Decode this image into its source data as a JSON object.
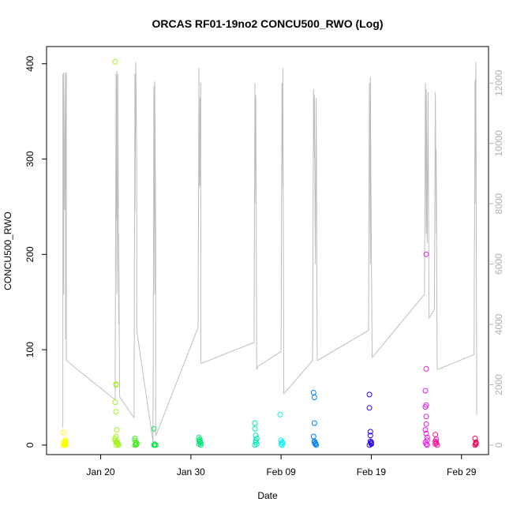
{
  "chart_data": {
    "type": "scatter",
    "title": "ORCAS RF01-19no2 CONCU500_RWO (Log)",
    "xlabel": "Date",
    "ylabel": "CONCU500_RWO",
    "xlim": [
      "2016-01-14",
      "2016-03-03"
    ],
    "ylim": [
      -10,
      418
    ],
    "y2lim": [
      -316,
      13210
    ],
    "x_ticks": [
      {
        "label": "Jan 20",
        "date": "2016-01-20"
      },
      {
        "label": "Jan 30",
        "date": "2016-01-30"
      },
      {
        "label": "Feb 09",
        "date": "2016-02-09"
      },
      {
        "label": "Feb 19",
        "date": "2016-02-19"
      },
      {
        "label": "Feb 29",
        "date": "2016-02-29"
      }
    ],
    "y_ticks": [
      0,
      100,
      200,
      300,
      400
    ],
    "y2_ticks": [
      0,
      2000,
      4000,
      6000,
      8000,
      10000,
      12000
    ],
    "grid": false,
    "legend": "none",
    "right_axis_color": "#b0b0b0",
    "line_series": {
      "color": "#bebebe",
      "segments": [
        {
          "x": [
            "2016-01-15.8",
            "2016-01-15.8",
            "2016-01-15.9",
            "2016-01-15.9",
            "2016-01-16.0",
            "2016-01-16.0",
            "2016-01-16.1",
            "2016-01-16.1",
            "2016-01-16.1",
            "2016-01-16.2",
            "2016-01-16.2"
          ],
          "y": [
            600,
            12300,
            5000,
            12350,
            7800,
            8400,
            12350,
            3500,
            8300,
            12350,
            2800
          ]
        },
        {
          "x": [
            "2016-01-16.2",
            "2016-01-21.6"
          ],
          "y": [
            2800,
            1500
          ]
        },
        {
          "x": [
            "2016-01-21.6",
            "2016-01-21.7",
            "2016-01-21.7",
            "2016-01-21.8",
            "2016-01-21.8",
            "2016-01-21.9",
            "2016-01-21.9",
            "2016-01-22.0",
            "2016-01-22.0",
            "2016-01-22.1"
          ],
          "y": [
            1500,
            12300,
            7500,
            12400,
            5000,
            9500,
            12300,
            4000,
            7000,
            1600
          ]
        },
        {
          "x": [
            "2016-01-22.1",
            "2016-01-23.7"
          ],
          "y": [
            1600,
            900
          ]
        },
        {
          "x": [
            "2016-01-23.7",
            "2016-01-23.8",
            "2016-01-23.8",
            "2016-01-23.9",
            "2016-01-24.0",
            "2016-01-24.0"
          ],
          "y": [
            900,
            12300,
            7700,
            12700,
            9000,
            3800
          ]
        },
        {
          "x": [
            "2016-01-24.0",
            "2016-01-25.8"
          ],
          "y": [
            3800,
            100
          ]
        },
        {
          "x": [
            "2016-01-25.8",
            "2016-01-25.9",
            "2016-01-26.0",
            "2016-01-26.0",
            "2016-01-26.1",
            "2016-01-26.1"
          ],
          "y": [
            100,
            11900,
            5000,
            12050,
            7000,
            300
          ]
        },
        {
          "x": [
            "2016-01-26.1",
            "2016-01-30.8"
          ],
          "y": [
            300,
            3900
          ]
        },
        {
          "x": [
            "2016-01-30.8",
            "2016-01-30.9",
            "2016-01-30.9",
            "2016-01-31.0",
            "2016-01-31.0",
            "2016-01-31.1",
            "2016-01-31.1"
          ],
          "y": [
            3900,
            12500,
            8500,
            11500,
            8600,
            12000,
            2700
          ]
        },
        {
          "x": [
            "2016-01-31.1",
            "2016-02-06.0"
          ],
          "y": [
            2700,
            3400
          ]
        },
        {
          "x": [
            "2016-02-06.0",
            "2016-02-06.1",
            "2016-02-06.1",
            "2016-02-06.2",
            "2016-02-06.3",
            "2016-02-06.4"
          ],
          "y": [
            3400,
            12000,
            8000,
            11600,
            2500,
            2600
          ]
        },
        {
          "x": [
            "2016-02-06.4",
            "2016-02-09.0"
          ],
          "y": [
            2600,
            3100
          ]
        },
        {
          "x": [
            "2016-02-09.0",
            "2016-02-09.1",
            "2016-02-09.2",
            "2016-02-09.2",
            "2016-02-09.3"
          ],
          "y": [
            3100,
            12000,
            8500,
            12500,
            1700
          ]
        },
        {
          "x": [
            "2016-02-09.3",
            "2016-02-12.5"
          ],
          "y": [
            1700,
            2800
          ]
        },
        {
          "x": [
            "2016-02-12.5",
            "2016-02-12.6",
            "2016-02-12.7",
            "2016-02-12.7",
            "2016-02-12.8",
            "2016-02-12.9",
            "2016-02-13.0"
          ],
          "y": [
            2800,
            11800,
            9500,
            11600,
            6000,
            11500,
            2800
          ]
        },
        {
          "x": [
            "2016-02-13.0",
            "2016-02-18.7"
          ],
          "y": [
            2800,
            3800
          ]
        },
        {
          "x": [
            "2016-02-18.7",
            "2016-02-18.8",
            "2016-02-18.9",
            "2016-02-18.9",
            "2016-02-19.0",
            "2016-02-19.1"
          ],
          "y": [
            3800,
            12000,
            6000,
            12200,
            7000,
            2900
          ]
        },
        {
          "x": [
            "2016-02-19.1",
            "2016-02-24.9"
          ],
          "y": [
            2900,
            5000
          ]
        },
        {
          "x": [
            "2016-02-24.9",
            "2016-02-25.0",
            "2016-02-25.1",
            "2016-02-25.1",
            "2016-02-25.2",
            "2016-02-25.3",
            "2016-02-25.4"
          ],
          "y": [
            5000,
            12000,
            7000,
            11800,
            6700,
            11700,
            4200
          ]
        },
        {
          "x": [
            "2016-02-25.4",
            "2016-02-26.0"
          ],
          "y": [
            4200,
            4500
          ]
        },
        {
          "x": [
            "2016-02-26.0",
            "2016-02-26.1",
            "2016-02-26.2",
            "2016-02-26.2",
            "2016-02-26.3"
          ],
          "y": [
            4500,
            11700,
            7000,
            9800,
            2500
          ]
        },
        {
          "x": [
            "2016-02-26.3",
            "2016-03-01.4"
          ],
          "y": [
            2500,
            3000
          ]
        },
        {
          "x": [
            "2016-03-01.4",
            "2016-03-01.5",
            "2016-03-01.5",
            "2016-03-01.6",
            "2016-03-01.7",
            "2016-03-01.7"
          ],
          "y": [
            3000,
            12100,
            8000,
            12700,
            1000,
            2200
          ]
        }
      ]
    },
    "series": [
      {
        "color": "#ffff00",
        "x": [
          "2016-01-15.9",
          "2016-01-15.9",
          "2016-01-16.0",
          "2016-01-16.0",
          "2016-01-16.0",
          "2016-01-16.1",
          "2016-01-16.1",
          "2016-01-16.1",
          "2016-01-15.9",
          "2016-01-16.1",
          "2016-01-16.0",
          "2016-01-16.0",
          "2016-01-15.9",
          "2016-01-16.1"
        ],
        "y": [
          0,
          1,
          2,
          0,
          3,
          1,
          0,
          5,
          13,
          2,
          4,
          0,
          1,
          3
        ]
      },
      {
        "color": "#a6f225",
        "x": [
          "2016-01-21.6",
          "2016-01-21.7",
          "2016-01-21.7",
          "2016-01-21.6",
          "2016-01-21.7",
          "2016-01-21.8",
          "2016-01-21.7",
          "2016-01-21.6",
          "2016-01-21.6",
          "2016-01-21.7",
          "2016-01-21.8",
          "2016-01-21.9",
          "2016-01-22.0",
          "2016-01-21.7",
          "2016-01-21.8",
          "2016-01-21.9"
        ],
        "y": [
          402,
          64,
          63,
          45,
          35,
          16,
          9,
          7,
          5,
          3,
          2,
          1,
          0,
          0,
          4,
          2
        ]
      },
      {
        "color": "#4dec2f",
        "x": [
          "2016-01-23.8",
          "2016-01-23.8",
          "2016-01-23.9",
          "2016-01-24.0",
          "2016-01-23.9",
          "2016-01-24.0",
          "2016-01-23.8",
          "2016-01-23.9"
        ],
        "y": [
          7,
          5,
          3,
          1,
          0,
          2,
          0,
          1
        ]
      },
      {
        "color": "#19e64d",
        "x": [
          "2016-01-25.9",
          "2016-01-25.9",
          "2016-01-26.0",
          "2016-01-26.0",
          "2016-01-26.1"
        ],
        "y": [
          17,
          0,
          1,
          0,
          0
        ]
      },
      {
        "color": "#00e673",
        "x": [
          "2016-01-30.9",
          "2016-01-30.9",
          "2016-01-31.0",
          "2016-01-31.0",
          "2016-01-31.1",
          "2016-01-31.1",
          "2016-01-30.9",
          "2016-01-31.0"
        ],
        "y": [
          8,
          5,
          3,
          6,
          0,
          2,
          1,
          4
        ]
      },
      {
        "color": "#00e6b3",
        "x": [
          "2016-02-06.1",
          "2016-02-06.1",
          "2016-02-06.2",
          "2016-02-06.2",
          "2016-02-06.2",
          "2016-02-06.3",
          "2016-02-06.1",
          "2016-02-06.3"
        ],
        "y": [
          23,
          17,
          10,
          5,
          3,
          1,
          0,
          7
        ]
      },
      {
        "color": "#00f2f2",
        "x": [
          "2016-02-08.9",
          "2016-02-09.0",
          "2016-02-09.1",
          "2016-02-09.1",
          "2016-02-09.2",
          "2016-02-09.0"
        ],
        "y": [
          32,
          5,
          3,
          0,
          2,
          1
        ]
      },
      {
        "color": "#0080f2",
        "x": [
          "2016-02-12.6",
          "2016-02-12.7",
          "2016-02-12.7",
          "2016-02-12.6",
          "2016-02-12.7",
          "2016-02-12.8",
          "2016-02-12.8",
          "2016-02-12.9",
          "2016-02-12.7",
          "2016-02-12.8"
        ],
        "y": [
          55,
          50,
          23,
          9,
          4,
          2,
          1,
          0,
          3,
          1
        ]
      },
      {
        "color": "#2a00e6",
        "x": [
          "2016-02-18.8",
          "2016-02-18.8",
          "2016-02-18.9",
          "2016-02-18.9",
          "2016-02-18.9",
          "2016-02-19.0",
          "2016-02-19.0",
          "2016-02-18.8",
          "2016-02-19.0"
        ],
        "y": [
          53,
          39,
          14,
          10,
          4,
          2,
          1,
          0,
          3
        ]
      },
      {
        "color": "#e619e6",
        "x": [
          "2016-02-25.1",
          "2016-02-25.1",
          "2016-02-25.0",
          "2016-02-25.1",
          "2016-02-25.0",
          "2016-02-25.1",
          "2016-02-25.1",
          "2016-02-25.0",
          "2016-02-25.1",
          "2016-02-25.2",
          "2016-02-25.2",
          "2016-02-25.0",
          "2016-02-25.1",
          "2016-02-25.2"
        ],
        "y": [
          200,
          80,
          57,
          42,
          40,
          30,
          22,
          16,
          12,
          8,
          5,
          3,
          1,
          0
        ]
      },
      {
        "color": "#f2199c",
        "x": [
          "2016-02-26.1",
          "2016-02-26.2",
          "2016-02-26.2",
          "2016-02-26.1",
          "2016-02-26.3",
          "2016-02-26.2",
          "2016-02-26.1"
        ],
        "y": [
          11,
          6,
          3,
          1,
          0,
          2,
          4
        ]
      },
      {
        "color": "#f2005c",
        "x": [
          "2016-03-01.5",
          "2016-03-01.6",
          "2016-03-01.6",
          "2016-03-01.5",
          "2016-03-01.6"
        ],
        "y": [
          7,
          3,
          1,
          0,
          2
        ]
      }
    ]
  }
}
